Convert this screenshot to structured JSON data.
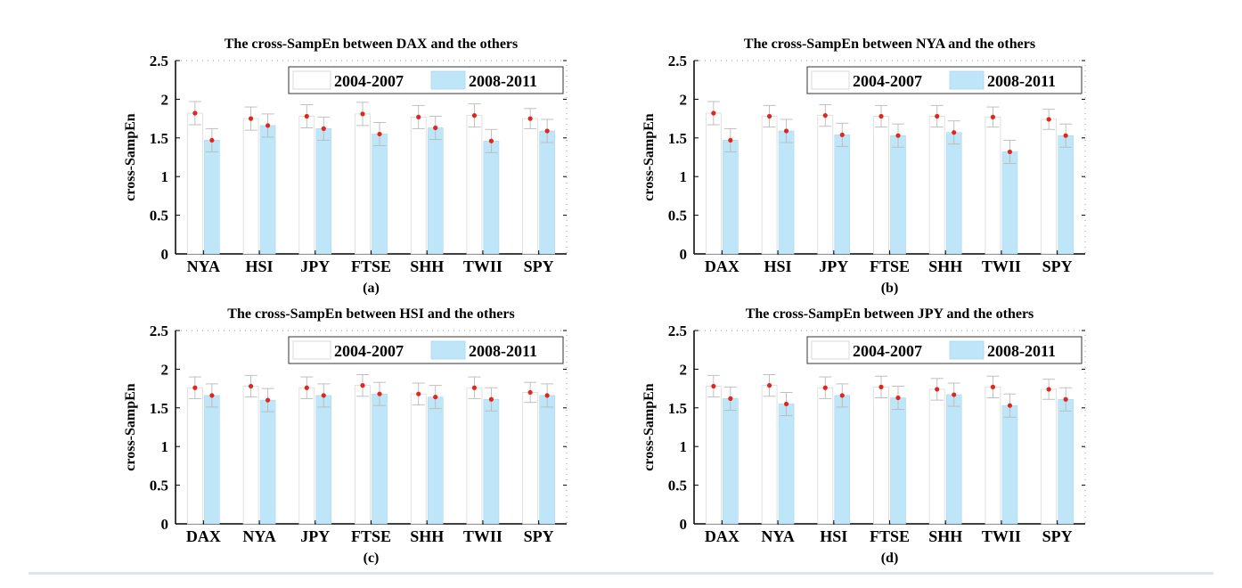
{
  "chart_data": [
    {
      "type": "bar",
      "title": "The cross-SampEn between DAX and the others",
      "caption": "(a)",
      "ylabel": "cross-SampEn",
      "xlabel": "",
      "ylim": [
        0,
        2.5
      ],
      "yticks": [
        "0",
        "0.5",
        "1",
        "1.5",
        "2",
        "2.5"
      ],
      "legend": "top-right",
      "categories": [
        "NYA",
        "HSI",
        "JPY",
        "FTSE",
        "SHH",
        "TWII",
        "SPY"
      ],
      "series": [
        {
          "name": "2004-2007",
          "values": [
            1.82,
            1.75,
            1.78,
            1.81,
            1.77,
            1.79,
            1.75
          ],
          "err": [
            0.15,
            0.15,
            0.15,
            0.15,
            0.15,
            0.15,
            0.13
          ]
        },
        {
          "name": "2008-2011",
          "values": [
            1.47,
            1.66,
            1.62,
            1.55,
            1.63,
            1.46,
            1.59
          ],
          "err": [
            0.15,
            0.15,
            0.15,
            0.15,
            0.15,
            0.15,
            0.15
          ]
        }
      ]
    },
    {
      "type": "bar",
      "title": "The cross-SampEn between NYA and the others",
      "caption": "(b)",
      "ylabel": "cross-SampEn",
      "xlabel": "",
      "ylim": [
        0,
        2.5
      ],
      "yticks": [
        "0",
        "0.5",
        "1",
        "1.5",
        "2",
        "2.5"
      ],
      "legend": "top-right",
      "categories": [
        "DAX",
        "HSI",
        "JPY",
        "FTSE",
        "SHH",
        "TWII",
        "SPY"
      ],
      "series": [
        {
          "name": "2004-2007",
          "values": [
            1.82,
            1.78,
            1.79,
            1.78,
            1.78,
            1.77,
            1.74
          ],
          "err": [
            0.15,
            0.14,
            0.14,
            0.14,
            0.14,
            0.13,
            0.13
          ]
        },
        {
          "name": "2008-2011",
          "values": [
            1.47,
            1.59,
            1.54,
            1.53,
            1.57,
            1.32,
            1.53
          ],
          "err": [
            0.15,
            0.15,
            0.15,
            0.15,
            0.15,
            0.15,
            0.15
          ]
        }
      ]
    },
    {
      "type": "bar",
      "title": "The cross-SampEn between HSI and the others",
      "caption": "(c)",
      "ylabel": "cross-SampEn",
      "xlabel": "",
      "ylim": [
        0,
        2.5
      ],
      "yticks": [
        "0",
        "0.5",
        "1",
        "1.5",
        "2",
        "2.5"
      ],
      "legend": "top-right",
      "categories": [
        "DAX",
        "NYA",
        "JPY",
        "FTSE",
        "SHH",
        "TWII",
        "SPY"
      ],
      "series": [
        {
          "name": "2004-2007",
          "values": [
            1.76,
            1.78,
            1.76,
            1.79,
            1.68,
            1.76,
            1.7
          ],
          "err": [
            0.14,
            0.14,
            0.14,
            0.14,
            0.14,
            0.14,
            0.13
          ]
        },
        {
          "name": "2008-2011",
          "values": [
            1.66,
            1.6,
            1.66,
            1.68,
            1.64,
            1.61,
            1.66
          ],
          "err": [
            0.15,
            0.15,
            0.15,
            0.15,
            0.15,
            0.15,
            0.15
          ]
        }
      ]
    },
    {
      "type": "bar",
      "title": "The cross-SampEn between JPY and the others",
      "caption": "(d)",
      "ylabel": "cross-SampEn",
      "xlabel": "",
      "ylim": [
        0,
        2.5
      ],
      "yticks": [
        "0",
        "0.5",
        "1",
        "1.5",
        "2",
        "2.5"
      ],
      "legend": "top-right",
      "categories": [
        "DAX",
        "NYA",
        "HSI",
        "FTSE",
        "SHH",
        "TWII",
        "SPY"
      ],
      "series": [
        {
          "name": "2004-2007",
          "values": [
            1.78,
            1.79,
            1.76,
            1.77,
            1.74,
            1.77,
            1.74
          ],
          "err": [
            0.14,
            0.14,
            0.14,
            0.14,
            0.14,
            0.14,
            0.13
          ]
        },
        {
          "name": "2008-2011",
          "values": [
            1.62,
            1.55,
            1.66,
            1.63,
            1.67,
            1.53,
            1.61
          ],
          "err": [
            0.15,
            0.15,
            0.15,
            0.15,
            0.15,
            0.15,
            0.15
          ]
        }
      ]
    }
  ],
  "style": {
    "bar_fill_2004": "#ffffff",
    "bar_edge_2004": "#d9d9d9",
    "bar_fill_2008": "#bfe6f8",
    "marker_color": "#e3261c",
    "errorbar_color": "#b9b9b9"
  }
}
